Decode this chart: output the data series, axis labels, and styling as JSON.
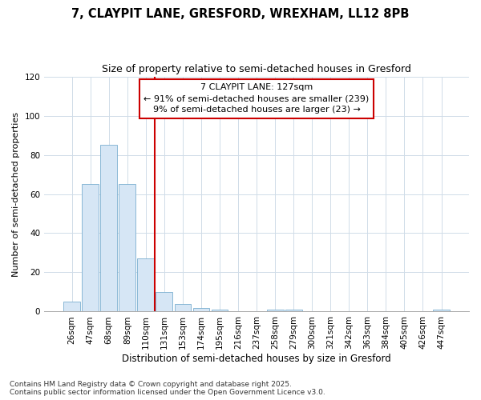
{
  "title1": "7, CLAYPIT LANE, GRESFORD, WREXHAM, LL12 8PB",
  "title2": "Size of property relative to semi-detached houses in Gresford",
  "xlabel": "Distribution of semi-detached houses by size in Gresford",
  "ylabel": "Number of semi-detached properties",
  "bar_labels": [
    "26sqm",
    "47sqm",
    "68sqm",
    "89sqm",
    "110sqm",
    "131sqm",
    "153sqm",
    "174sqm",
    "195sqm",
    "216sqm",
    "237sqm",
    "258sqm",
    "279sqm",
    "300sqm",
    "321sqm",
    "342sqm",
    "363sqm",
    "384sqm",
    "405sqm",
    "426sqm",
    "447sqm"
  ],
  "bar_values": [
    5,
    65,
    85,
    65,
    27,
    10,
    4,
    2,
    1,
    0,
    0,
    1,
    1,
    0,
    0,
    0,
    0,
    0,
    0,
    0,
    1
  ],
  "bar_color": "#d6e6f5",
  "bar_edge_color": "#7aaed0",
  "vline_x_idx": 5,
  "vline_color": "#cc0000",
  "annotation_title": "7 CLAYPIT LANE: 127sqm",
  "annotation_line1": "← 91% of semi-detached houses are smaller (239)",
  "annotation_line2": "9% of semi-detached houses are larger (23) →",
  "annotation_box_color": "#ffffff",
  "annotation_box_edge": "#cc0000",
  "ylim": [
    0,
    120
  ],
  "yticks": [
    0,
    20,
    40,
    60,
    80,
    100,
    120
  ],
  "footer1": "Contains HM Land Registry data © Crown copyright and database right 2025.",
  "footer2": "Contains public sector information licensed under the Open Government Licence v3.0.",
  "bg_color": "#ffffff",
  "plot_bg_color": "#ffffff",
  "grid_color": "#d0dce8",
  "title1_fontsize": 10.5,
  "title2_fontsize": 9,
  "xlabel_fontsize": 8.5,
  "ylabel_fontsize": 8,
  "tick_fontsize": 7.5,
  "footer_fontsize": 6.5,
  "ann_fontsize": 8
}
